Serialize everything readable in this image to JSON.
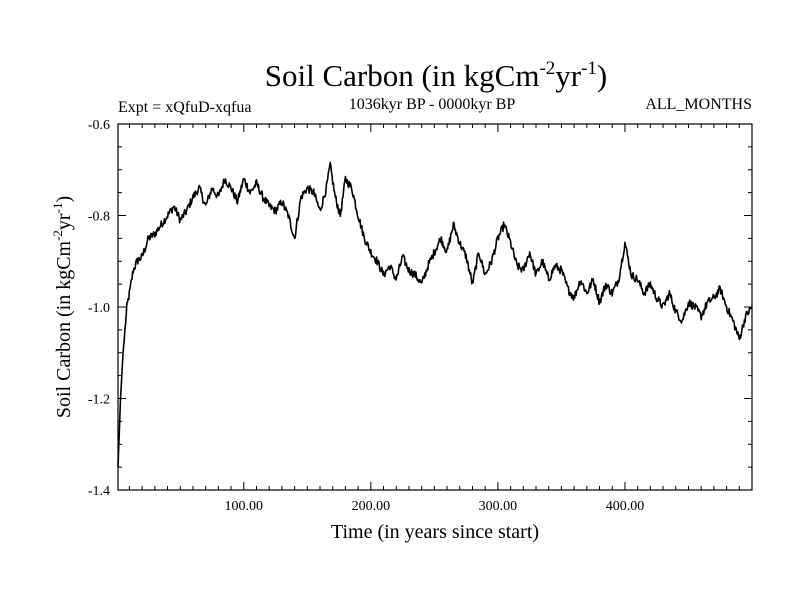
{
  "chart_data": {
    "type": "line",
    "title": {
      "main": "Soil Carbon (in kgCm",
      "sup1": "-2",
      "mid": "yr",
      "sup2": "-1",
      "end": ")"
    },
    "subtitle_left": "Expt = xQfuD-xqfua",
    "subtitle_center": "1036kyr BP - 0000kyr BP",
    "subtitle_right": "ALL_MONTHS",
    "xlabel": "Time (in years since start)",
    "ylabel": {
      "main": "Soil Carbon (in kgCm",
      "sup1": "-2",
      "mid": "yr",
      "sup2": "-1",
      "end": ")"
    },
    "xlim": [
      1,
      500
    ],
    "ylim": [
      -1.4,
      -0.6
    ],
    "xticks": [
      {
        "value": 100,
        "label": "100.00"
      },
      {
        "value": 200,
        "label": "200.00"
      },
      {
        "value": 300,
        "label": "300.00"
      },
      {
        "value": 400,
        "label": "400.00"
      }
    ],
    "yticks": [
      {
        "value": -1.4,
        "label": "-1.4"
      },
      {
        "value": -1.2,
        "label": "-1.2"
      },
      {
        "value": -1.0,
        "label": "-1.0"
      },
      {
        "value": -0.8,
        "label": "-0.8"
      },
      {
        "value": -0.6,
        "label": "-0.6"
      }
    ],
    "series": [
      {
        "name": "Soil Carbon",
        "color": "#000000",
        "x": [
          1,
          3,
          5,
          8,
          10,
          13,
          16,
          20,
          25,
          30,
          35,
          40,
          45,
          50,
          55,
          60,
          65,
          70,
          75,
          80,
          85,
          90,
          95,
          100,
          105,
          110,
          115,
          120,
          125,
          130,
          135,
          140,
          145,
          150,
          155,
          160,
          165,
          168,
          172,
          176,
          180,
          185,
          190,
          195,
          200,
          205,
          210,
          215,
          220,
          225,
          230,
          235,
          240,
          245,
          250,
          255,
          260,
          265,
          270,
          275,
          280,
          285,
          290,
          295,
          300,
          305,
          310,
          315,
          320,
          325,
          330,
          335,
          340,
          345,
          350,
          355,
          360,
          365,
          370,
          375,
          380,
          385,
          390,
          395,
          400,
          405,
          410,
          415,
          420,
          425,
          430,
          435,
          440,
          445,
          450,
          455,
          460,
          465,
          470,
          475,
          480,
          485,
          490,
          495,
          500
        ],
        "y": [
          -1.35,
          -1.2,
          -1.1,
          -1.0,
          -0.97,
          -0.92,
          -0.9,
          -0.89,
          -0.85,
          -0.84,
          -0.82,
          -0.8,
          -0.78,
          -0.81,
          -0.79,
          -0.76,
          -0.74,
          -0.78,
          -0.74,
          -0.76,
          -0.72,
          -0.74,
          -0.77,
          -0.72,
          -0.75,
          -0.73,
          -0.76,
          -0.78,
          -0.79,
          -0.77,
          -0.8,
          -0.85,
          -0.76,
          -0.74,
          -0.75,
          -0.79,
          -0.74,
          -0.69,
          -0.76,
          -0.8,
          -0.72,
          -0.74,
          -0.8,
          -0.85,
          -0.88,
          -0.9,
          -0.93,
          -0.91,
          -0.94,
          -0.89,
          -0.92,
          -0.93,
          -0.95,
          -0.91,
          -0.88,
          -0.85,
          -0.88,
          -0.82,
          -0.86,
          -0.89,
          -0.95,
          -0.88,
          -0.93,
          -0.9,
          -0.85,
          -0.82,
          -0.86,
          -0.91,
          -0.92,
          -0.88,
          -0.93,
          -0.9,
          -0.94,
          -0.91,
          -0.92,
          -0.96,
          -0.98,
          -0.94,
          -0.97,
          -0.94,
          -0.99,
          -0.95,
          -0.97,
          -0.94,
          -0.86,
          -0.93,
          -0.94,
          -0.97,
          -0.95,
          -0.98,
          -1.0,
          -0.97,
          -1.01,
          -1.03,
          -0.99,
          -1.0,
          -1.02,
          -0.99,
          -0.98,
          -0.96,
          -1.0,
          -1.03,
          -1.07,
          -1.02,
          -1.0
        ]
      }
    ]
  }
}
